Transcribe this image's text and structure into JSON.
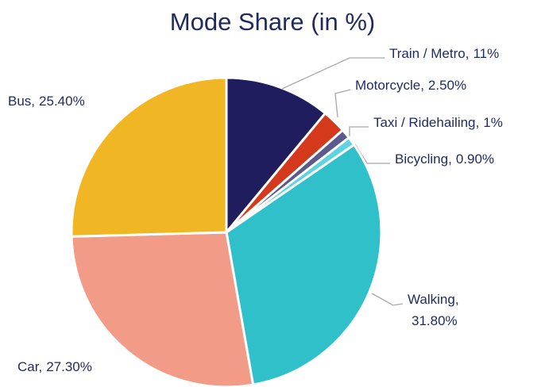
{
  "chart_data": {
    "type": "pie",
    "title": "Mode Share (in %)",
    "categories": [
      "Train / Metro",
      "Motorcycle",
      "Taxi / Ridehailing",
      "Bicycling",
      "Walking",
      "Car",
      "Bus"
    ],
    "values": [
      11,
      2.5,
      1,
      0.9,
      31.8,
      27.3,
      25.4
    ],
    "value_labels": [
      "11%",
      "2.50%",
      "1%",
      "0.90%",
      "31.80%",
      "27.30%",
      "25.40%"
    ],
    "colors": [
      "#1f1d5e",
      "#d5391c",
      "#5b5a8c",
      "#5fd3de",
      "#30c0ca",
      "#f29b87",
      "#f0b623"
    ]
  }
}
